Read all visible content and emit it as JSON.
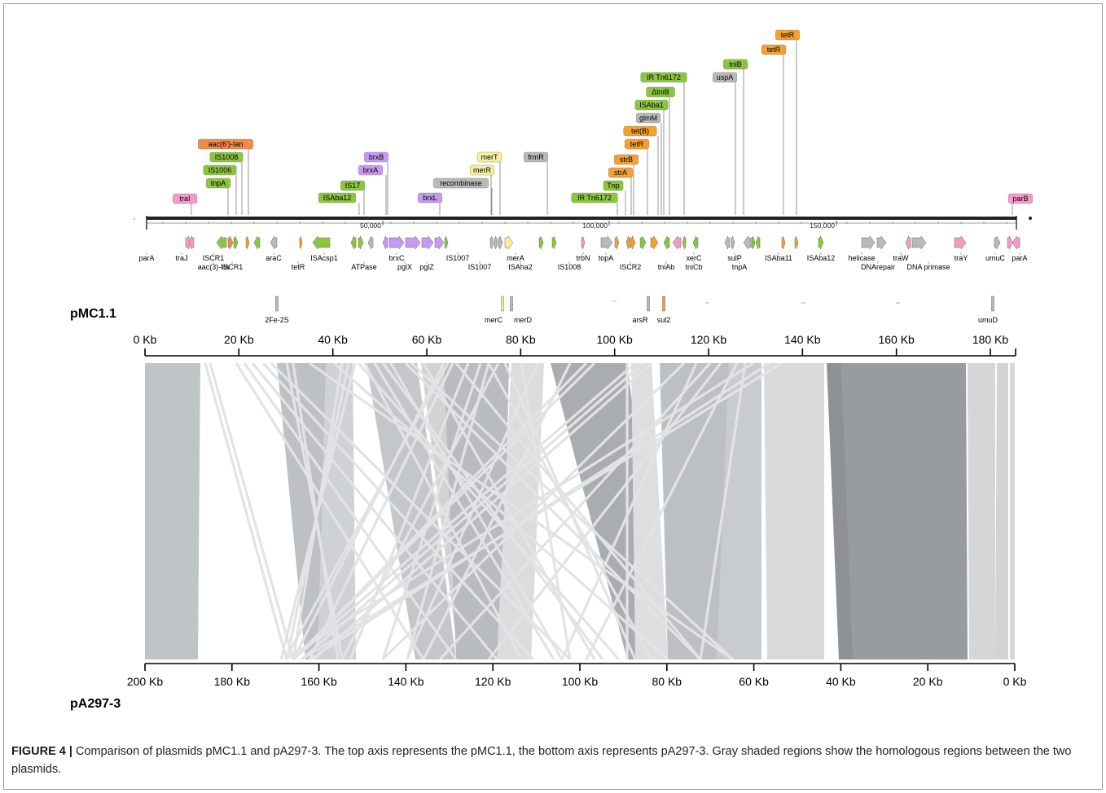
{
  "plasmid_top": "pMC1.1",
  "plasmid_bottom": "pA297-3",
  "caption_label": "FIGURE 4 |",
  "caption_text": " Comparison of plasmids pMC1.1 and pA297-3. The top axis represents the pMC1.1, the bottom axis represents pA297-3. Gray shaded regions show the homologous regions between the two plasmids.",
  "map_scale_labels": [
    "50,000",
    "100,000",
    "150,000"
  ],
  "top_axis_labels": [
    "0 Kb",
    "20 Kb",
    "40 Kb",
    "60 Kb",
    "80 Kb",
    "100 Kb",
    "120 Kb",
    "140 Kb",
    "160 Kb",
    "180 Kb"
  ],
  "bottom_axis_labels": [
    "200 Kb",
    "180 Kb",
    "160 Kb",
    "140 Kb",
    "120 Kb",
    "100 Kb",
    "80 Kb",
    "60 Kb",
    "40 Kb",
    "20 Kb",
    "0 Kb"
  ],
  "colors": {
    "pink": "#f59ac6",
    "orange": "#f4a12e",
    "orange_red": "#f28a4a",
    "green": "#8cc63f",
    "purple": "#c79af2",
    "yellow": "#f7f09a",
    "gray": "#b9b9b9"
  },
  "gene_tags": [
    {
      "text": "traI",
      "color": "pink"
    },
    {
      "text": "tnpA",
      "color": "green"
    },
    {
      "text": "IS1006",
      "color": "green"
    },
    {
      "text": "IS1008",
      "color": "green"
    },
    {
      "text": "aac(6')-Ian",
      "color": "orange_red"
    },
    {
      "text": "ISAba12",
      "color": "green"
    },
    {
      "text": "IS17",
      "color": "green"
    },
    {
      "text": "brxA",
      "color": "purple"
    },
    {
      "text": "brxB",
      "color": "purple"
    },
    {
      "text": "brxL",
      "color": "purple"
    },
    {
      "text": "recombinase",
      "color": "gray"
    },
    {
      "text": "merR",
      "color": "yellow"
    },
    {
      "text": "merT",
      "color": "yellow"
    },
    {
      "text": "frmR",
      "color": "gray"
    },
    {
      "text": "IR Tn6172",
      "color": "green"
    },
    {
      "text": "Tnp",
      "color": "green"
    },
    {
      "text": "strA",
      "color": "orange"
    },
    {
      "text": "strB",
      "color": "orange"
    },
    {
      "text": "tetR",
      "color": "orange"
    },
    {
      "text": "tet(B)",
      "color": "orange"
    },
    {
      "text": "glmM",
      "color": "gray"
    },
    {
      "text": "ISAba1",
      "color": "green"
    },
    {
      "text": "ΔtniB",
      "color": "green"
    },
    {
      "text": "IR Tn6172",
      "color": "green"
    },
    {
      "text": "uspA",
      "color": "gray"
    },
    {
      "text": "tniB",
      "color": "green"
    },
    {
      "text": "tetR",
      "color": "orange"
    },
    {
      "text": "tetR",
      "color": "orange"
    },
    {
      "text": "parB",
      "color": "pink"
    }
  ],
  "gene_labels_row1": [
    "parA",
    "traJ",
    "ISCR1",
    "aac(3)-IIa",
    "ISCR1",
    "araC",
    "tetR",
    "ISAcsp1",
    "ATPase",
    "brxC",
    "pglX",
    "pglZ",
    "IS1007",
    "IS1007",
    "merA",
    "ISAha2",
    "IS1008",
    "trbN",
    "topA",
    "ISCR2",
    "tniAb",
    "xerC",
    "tniCb",
    "sulP",
    "tnpA",
    "ISAba11",
    "ISAba12",
    "helicase",
    "DNArepair",
    "traW",
    "DNA primase",
    "traY",
    "umuC",
    "parA"
  ],
  "gene_labels_row2": [
    "2Fe-2S",
    "merC",
    "merD",
    "arsR",
    "sul2",
    "umuD"
  ]
}
